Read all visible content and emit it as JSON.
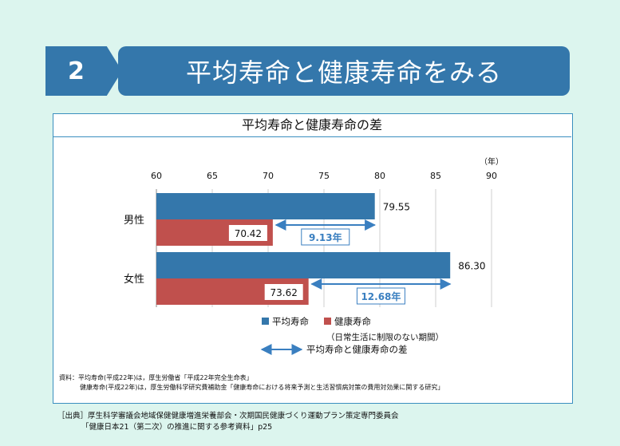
{
  "header": {
    "section_number": "2",
    "title": "平均寿命と健康寿命をみる"
  },
  "colors": {
    "blue": "#3477ab",
    "red": "#c0504d",
    "arrow": "#3a7fc0"
  },
  "chart_data": {
    "type": "bar",
    "orientation": "horizontal",
    "title": "平均寿命と健康寿命の差",
    "unit_label": "（年）",
    "xlim": [
      60,
      90
    ],
    "ticks": [
      "60",
      "65",
      "70",
      "75",
      "80",
      "85",
      "90"
    ],
    "categories": [
      "男性",
      "女性"
    ],
    "series": [
      {
        "name": "平均寿命",
        "values": [
          79.55,
          86.3
        ],
        "labels": [
          "79.55",
          "86.30"
        ]
      },
      {
        "name": "健康寿命",
        "values": [
          70.42,
          73.62
        ],
        "labels": [
          "70.42",
          "73.62"
        ]
      }
    ],
    "differences": [
      {
        "value": 9.13,
        "label": "9.13年"
      },
      {
        "value": 12.68,
        "label": "12.68年"
      }
    ],
    "legend": {
      "series1": "平均寿命",
      "series2": "健康寿命",
      "series2_note": "（日常生活に制限のない期間）",
      "arrow_label": "平均寿命と健康寿命の差"
    }
  },
  "notes": {
    "line1": "資料：平均寿命(平成22年)は，厚生労働省「平成22年完全生命表」",
    "line2": "健康寿命(平成22年)は，厚生労働科学研究費補助金「健康寿命における将来予測と生活習慣病対策の費用対効果に関する研究」"
  },
  "credit": {
    "line1": "［出典］厚生科学審議会地域保健健康増進栄養部会・次期国民健康づくり運動プラン策定専門委員会",
    "line2": "「健康日本21（第二次）の推進に関する参考資料」p25"
  }
}
